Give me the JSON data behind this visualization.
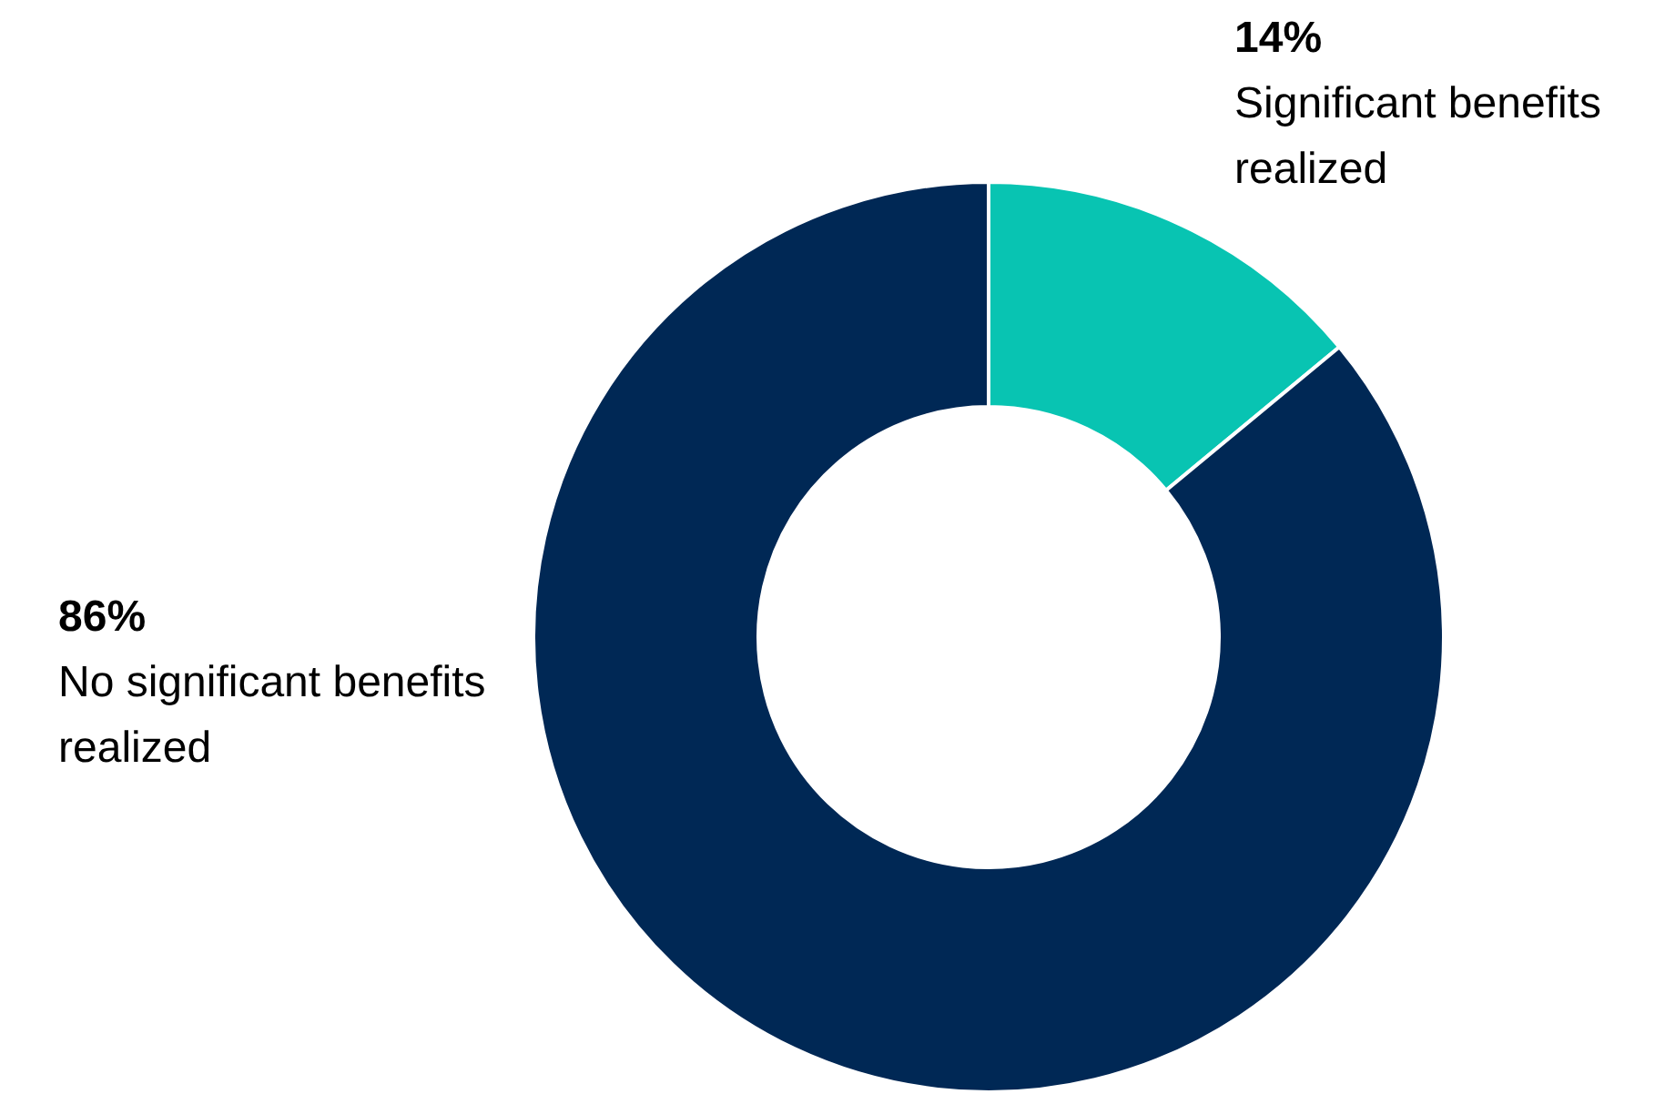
{
  "chart_data": {
    "type": "donut",
    "categories": [
      "Significant benefits realized",
      "No significant benefits realized"
    ],
    "values": [
      14,
      86
    ],
    "value_labels": [
      "14%",
      "86%"
    ],
    "colors": [
      "#08c4b2",
      "#002855"
    ],
    "legend": false
  }
}
